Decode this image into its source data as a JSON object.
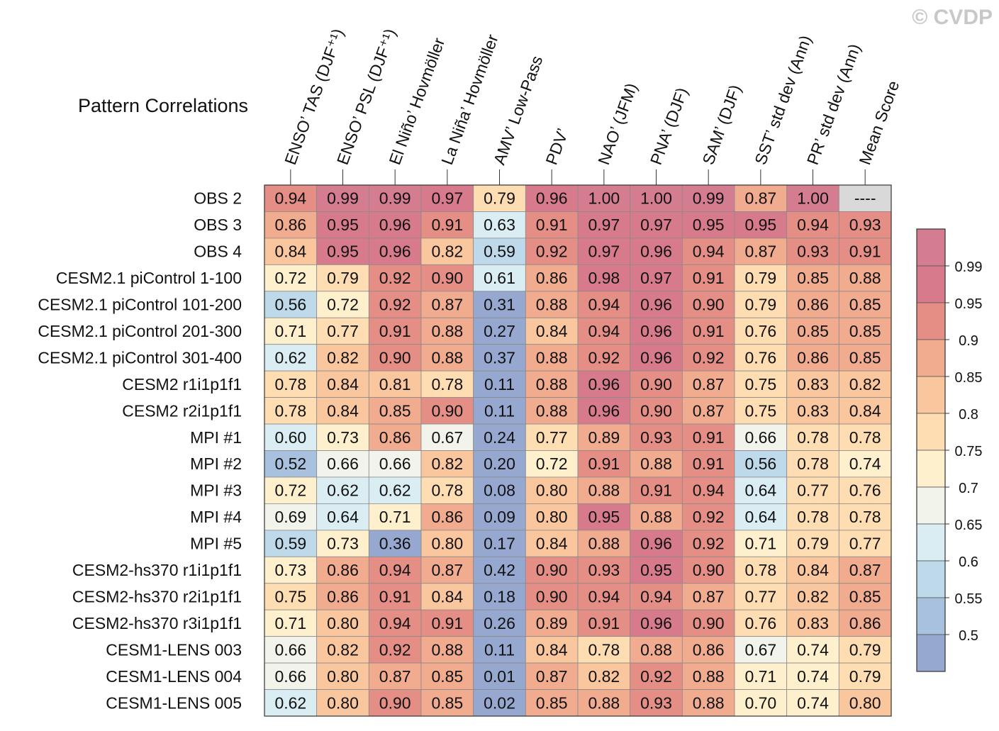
{
  "watermark": "© CVDP",
  "chart_data": {
    "type": "heatmap",
    "title": "Pattern Correlations",
    "columns": [
      "ENSO’ TAS (DJF⁺¹)",
      "ENSO’ PSL (DJF⁺¹)",
      "El Niño’ Hovmöller",
      "La Niña’ Hovmöller",
      "AMV’ Low-Pass",
      "PDV’",
      "NAO’ (JFM)",
      "PNA’ (DJF)",
      "SAM’ (DJF)",
      "SST’ std dev (Ann)",
      "PR’ std dev (Ann)",
      "Mean Score"
    ],
    "rows": [
      "OBS 2",
      "OBS 3",
      "OBS 4",
      "CESM2.1 piControl 1-100",
      "CESM2.1 piControl 101-200",
      "CESM2.1 piControl 201-300",
      "CESM2.1 piControl 301-400",
      "CESM2 r1i1p1f1",
      "CESM2 r2i1p1f1",
      "MPI #1",
      "MPI #2",
      "MPI #3",
      "MPI #4",
      "MPI #5",
      "CESM2-hs370 r1i1p1f1",
      "CESM2-hs370 r2i1p1f1",
      "CESM2-hs370 r3i1p1f1",
      "CESM1-LENS 003",
      "CESM1-LENS 004",
      "CESM1-LENS 005"
    ],
    "values": [
      [
        "0.94",
        "0.99",
        "0.99",
        "0.97",
        "0.79",
        "0.96",
        "1.00",
        "1.00",
        "0.99",
        "0.87",
        "1.00",
        "----"
      ],
      [
        "0.86",
        "0.95",
        "0.96",
        "0.91",
        "0.63",
        "0.91",
        "0.97",
        "0.97",
        "0.95",
        "0.95",
        "0.94",
        "0.93"
      ],
      [
        "0.84",
        "0.95",
        "0.96",
        "0.82",
        "0.59",
        "0.92",
        "0.97",
        "0.96",
        "0.94",
        "0.87",
        "0.93",
        "0.91"
      ],
      [
        "0.72",
        "0.79",
        "0.92",
        "0.90",
        "0.61",
        "0.86",
        "0.98",
        "0.97",
        "0.91",
        "0.79",
        "0.85",
        "0.88"
      ],
      [
        "0.56",
        "0.72",
        "0.92",
        "0.87",
        "0.31",
        "0.88",
        "0.94",
        "0.96",
        "0.90",
        "0.79",
        "0.86",
        "0.85"
      ],
      [
        "0.71",
        "0.77",
        "0.91",
        "0.88",
        "0.27",
        "0.84",
        "0.94",
        "0.96",
        "0.91",
        "0.76",
        "0.85",
        "0.85"
      ],
      [
        "0.62",
        "0.82",
        "0.90",
        "0.88",
        "0.37",
        "0.88",
        "0.92",
        "0.96",
        "0.92",
        "0.76",
        "0.86",
        "0.85"
      ],
      [
        "0.78",
        "0.84",
        "0.81",
        "0.78",
        "0.11",
        "0.88",
        "0.96",
        "0.90",
        "0.87",
        "0.75",
        "0.83",
        "0.82"
      ],
      [
        "0.78",
        "0.84",
        "0.85",
        "0.90",
        "0.11",
        "0.88",
        "0.96",
        "0.90",
        "0.87",
        "0.75",
        "0.83",
        "0.84"
      ],
      [
        "0.60",
        "0.73",
        "0.86",
        "0.67",
        "0.24",
        "0.77",
        "0.89",
        "0.93",
        "0.91",
        "0.66",
        "0.78",
        "0.78"
      ],
      [
        "0.52",
        "0.66",
        "0.66",
        "0.82",
        "0.20",
        "0.72",
        "0.91",
        "0.88",
        "0.91",
        "0.56",
        "0.78",
        "0.74"
      ],
      [
        "0.72",
        "0.62",
        "0.62",
        "0.78",
        "0.08",
        "0.80",
        "0.88",
        "0.91",
        "0.94",
        "0.64",
        "0.77",
        "0.76"
      ],
      [
        "0.69",
        "0.64",
        "0.71",
        "0.86",
        "0.09",
        "0.80",
        "0.95",
        "0.88",
        "0.92",
        "0.64",
        "0.78",
        "0.78"
      ],
      [
        "0.59",
        "0.73",
        "0.36",
        "0.80",
        "0.17",
        "0.84",
        "0.88",
        "0.96",
        "0.92",
        "0.71",
        "0.79",
        "0.77"
      ],
      [
        "0.73",
        "0.86",
        "0.94",
        "0.87",
        "0.42",
        "0.90",
        "0.93",
        "0.95",
        "0.90",
        "0.78",
        "0.84",
        "0.87"
      ],
      [
        "0.75",
        "0.86",
        "0.91",
        "0.84",
        "0.18",
        "0.90",
        "0.94",
        "0.94",
        "0.87",
        "0.77",
        "0.82",
        "0.85"
      ],
      [
        "0.71",
        "0.80",
        "0.94",
        "0.91",
        "0.26",
        "0.89",
        "0.91",
        "0.96",
        "0.90",
        "0.76",
        "0.83",
        "0.86"
      ],
      [
        "0.66",
        "0.82",
        "0.92",
        "0.88",
        "0.11",
        "0.84",
        "0.78",
        "0.88",
        "0.86",
        "0.67",
        "0.74",
        "0.79"
      ],
      [
        "0.66",
        "0.80",
        "0.87",
        "0.85",
        "0.01",
        "0.87",
        "0.82",
        "0.92",
        "0.88",
        "0.71",
        "0.74",
        "0.79"
      ],
      [
        "0.62",
        "0.80",
        "0.90",
        "0.85",
        "0.02",
        "0.85",
        "0.88",
        "0.93",
        "0.88",
        "0.70",
        "0.74",
        "0.80"
      ]
    ],
    "colorbar": {
      "levels": [
        0.5,
        0.55,
        0.6,
        0.65,
        0.7,
        0.75,
        0.8,
        0.85,
        0.9,
        0.95,
        0.99
      ],
      "labels": [
        "0.5",
        "0.55",
        "0.6",
        "0.65",
        "0.7",
        "0.75",
        "0.8",
        "0.85",
        "0.9",
        "0.95",
        "0.99"
      ],
      "colors": [
        "#96A7D0",
        "#A8C1DE",
        "#BEDAEA",
        "#DAEDF2",
        "#F2F3EA",
        "#FEF0CD",
        "#FDDDB1",
        "#F9C69E",
        "#F1AB8F",
        "#E48E85",
        "#D77A8B",
        "#D47D90"
      ],
      "missing_color": "#D9D9D9"
    }
  }
}
